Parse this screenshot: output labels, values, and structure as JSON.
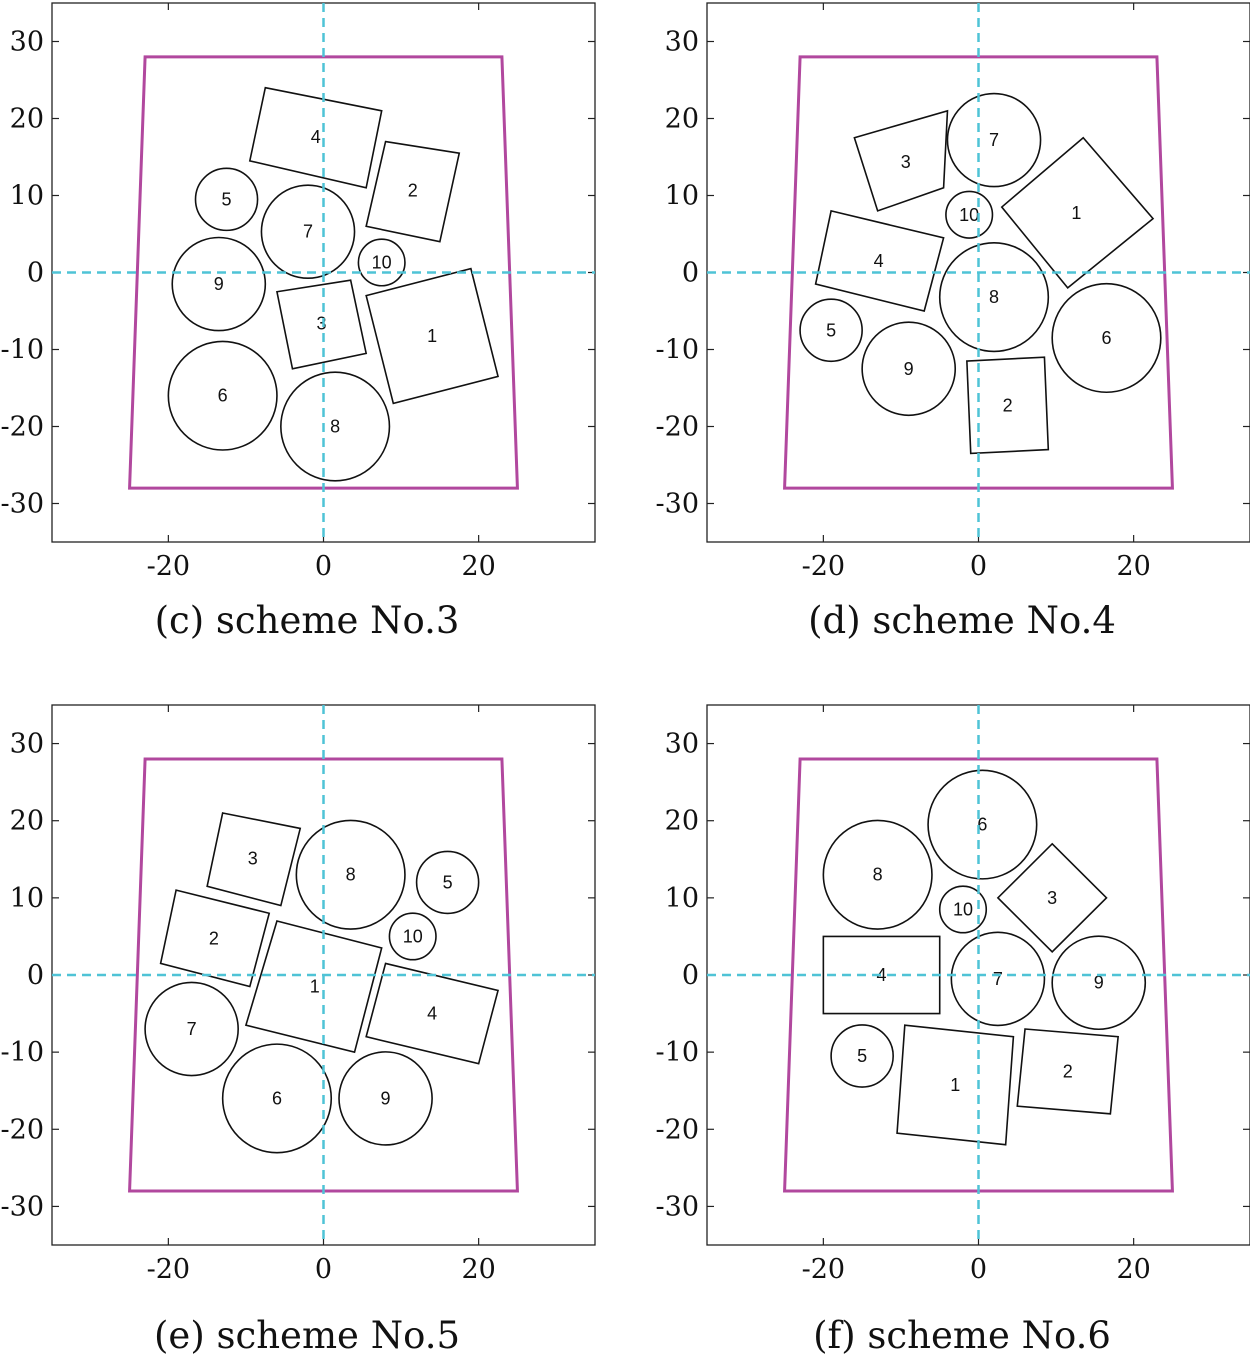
{
  "chart_data": [
    {
      "type": "scatter",
      "caption": "(c) scheme No.3",
      "xlim": [
        -35,
        35
      ],
      "ylim": [
        -35,
        35
      ],
      "xticks": [
        -20,
        0,
        20
      ],
      "yticks": [
        30,
        20,
        10,
        0,
        -10,
        -20,
        -30
      ],
      "container": [
        [
          -23,
          28
        ],
        [
          23,
          28
        ],
        [
          25,
          -28
        ],
        [
          -25,
          -28
        ]
      ],
      "parts": [
        {
          "label": "1",
          "shape": "rect",
          "corners": [
            [
              5.5,
              -3
            ],
            [
              19,
              0.5
            ],
            [
              22.5,
              -13.5
            ],
            [
              9,
              -17
            ]
          ]
        },
        {
          "label": "2",
          "shape": "rect",
          "corners": [
            [
              8,
              17
            ],
            [
              17.5,
              15.5
            ],
            [
              15,
              4
            ],
            [
              5.5,
              6
            ]
          ]
        },
        {
          "label": "3",
          "shape": "rect",
          "corners": [
            [
              -6,
              -2.5
            ],
            [
              3.5,
              -1
            ],
            [
              5.5,
              -10.5
            ],
            [
              -4,
              -12.5
            ]
          ]
        },
        {
          "label": "4",
          "shape": "rect",
          "corners": [
            [
              -7.5,
              24
            ],
            [
              7.5,
              21
            ],
            [
              5.5,
              11
            ],
            [
              -9.5,
              14.5
            ]
          ]
        },
        {
          "label": "5",
          "shape": "circle",
          "center": [
            -12.5,
            9.5
          ],
          "r": 4
        },
        {
          "label": "6",
          "shape": "circle",
          "center": [
            -13,
            -16
          ],
          "r": 7
        },
        {
          "label": "7",
          "shape": "circle",
          "center": [
            -2,
            5.3
          ],
          "r": 6
        },
        {
          "label": "8",
          "shape": "circle",
          "center": [
            1.5,
            -20
          ],
          "r": 7
        },
        {
          "label": "9",
          "shape": "circle",
          "center": [
            -13.5,
            -1.5
          ],
          "r": 6
        },
        {
          "label": "10",
          "shape": "circle",
          "center": [
            7.5,
            1.3
          ],
          "r": 3
        }
      ]
    },
    {
      "type": "scatter",
      "caption": "(d) scheme No.4",
      "xlim": [
        -35,
        35
      ],
      "ylim": [
        -35,
        35
      ],
      "xticks": [
        -20,
        0,
        20
      ],
      "yticks": [
        30,
        20,
        10,
        0,
        -10,
        -20,
        -30
      ],
      "container": [
        [
          -23,
          28
        ],
        [
          23,
          28
        ],
        [
          25,
          -28
        ],
        [
          -25,
          -28
        ]
      ],
      "parts": [
        {
          "label": "1",
          "shape": "rect",
          "corners": [
            [
              3,
              8.5
            ],
            [
              13.5,
              17.5
            ],
            [
              22.5,
              7
            ],
            [
              11.5,
              -2
            ]
          ]
        },
        {
          "label": "2",
          "shape": "rect",
          "corners": [
            [
              -1.5,
              -11.5
            ],
            [
              8.5,
              -11
            ],
            [
              9,
              -23
            ],
            [
              -1,
              -23.5
            ]
          ]
        },
        {
          "label": "3",
          "shape": "rect",
          "corners": [
            [
              -16,
              17.5
            ],
            [
              -4,
              21
            ],
            [
              -4.5,
              11
            ],
            [
              -13,
              8
            ]
          ]
        },
        {
          "label": "4",
          "shape": "rect",
          "corners": [
            [
              -19,
              8
            ],
            [
              -4.5,
              4.5
            ],
            [
              -7,
              -5
            ],
            [
              -21,
              -1.5
            ]
          ]
        },
        {
          "label": "5",
          "shape": "circle",
          "center": [
            -19,
            -7.5
          ],
          "r": 4
        },
        {
          "label": "6",
          "shape": "circle",
          "center": [
            16.5,
            -8.5
          ],
          "r": 7
        },
        {
          "label": "7",
          "shape": "circle",
          "center": [
            2,
            17.2
          ],
          "r": 6
        },
        {
          "label": "8",
          "shape": "circle",
          "center": [
            2,
            -3.2
          ],
          "r": 7
        },
        {
          "label": "9",
          "shape": "circle",
          "center": [
            -9,
            -12.5
          ],
          "r": 6
        },
        {
          "label": "10",
          "shape": "circle",
          "center": [
            -1.2,
            7.5
          ],
          "r": 3
        }
      ]
    },
    {
      "type": "scatter",
      "caption": "(e) scheme No.5",
      "xlim": [
        -35,
        35
      ],
      "ylim": [
        -35,
        35
      ],
      "xticks": [
        -20,
        0,
        20
      ],
      "yticks": [
        30,
        20,
        10,
        0,
        -10,
        -20,
        -30
      ],
      "container": [
        [
          -23,
          28
        ],
        [
          23,
          28
        ],
        [
          25,
          -28
        ],
        [
          -25,
          -28
        ]
      ],
      "parts": [
        {
          "label": "1",
          "shape": "rect",
          "corners": [
            [
              -6,
              7
            ],
            [
              7.5,
              3.5
            ],
            [
              4,
              -10
            ],
            [
              -10,
              -6.5
            ]
          ]
        },
        {
          "label": "2",
          "shape": "rect",
          "corners": [
            [
              -19,
              11
            ],
            [
              -7,
              8
            ],
            [
              -9.5,
              -1.5
            ],
            [
              -21,
              1.5
            ]
          ]
        },
        {
          "label": "3",
          "shape": "rect",
          "corners": [
            [
              -13,
              21
            ],
            [
              -3,
              19
            ],
            [
              -5.5,
              9
            ],
            [
              -15,
              11.5
            ]
          ]
        },
        {
          "label": "4",
          "shape": "rect",
          "corners": [
            [
              8,
              1.5
            ],
            [
              22.5,
              -2
            ],
            [
              20,
              -11.5
            ],
            [
              5.5,
              -8
            ]
          ]
        },
        {
          "label": "5",
          "shape": "circle",
          "center": [
            16,
            12
          ],
          "r": 4
        },
        {
          "label": "6",
          "shape": "circle",
          "center": [
            -6,
            -16
          ],
          "r": 7
        },
        {
          "label": "7",
          "shape": "circle",
          "center": [
            -17,
            -7
          ],
          "r": 6
        },
        {
          "label": "8",
          "shape": "circle",
          "center": [
            3.5,
            13
          ],
          "r": 7
        },
        {
          "label": "9",
          "shape": "circle",
          "center": [
            8,
            -16
          ],
          "r": 6
        },
        {
          "label": "10",
          "shape": "circle",
          "center": [
            11.5,
            5
          ],
          "r": 3
        }
      ]
    },
    {
      "type": "scatter",
      "caption": "(f) scheme No.6",
      "xlim": [
        -35,
        35
      ],
      "ylim": [
        -35,
        35
      ],
      "xticks": [
        -20,
        0,
        20
      ],
      "yticks": [
        30,
        20,
        10,
        0,
        -10,
        -20,
        -30
      ],
      "container": [
        [
          -23,
          28
        ],
        [
          23,
          28
        ],
        [
          25,
          -28
        ],
        [
          -25,
          -28
        ]
      ],
      "parts": [
        {
          "label": "1",
          "shape": "rect",
          "corners": [
            [
              -9.5,
              -6.5
            ],
            [
              4.5,
              -8
            ],
            [
              3.5,
              -22
            ],
            [
              -10.5,
              -20.5
            ]
          ]
        },
        {
          "label": "2",
          "shape": "rect",
          "corners": [
            [
              6,
              -7
            ],
            [
              18,
              -8
            ],
            [
              17,
              -18
            ],
            [
              5,
              -17
            ]
          ]
        },
        {
          "label": "3",
          "shape": "rect",
          "corners": [
            [
              9.5,
              17
            ],
            [
              16.5,
              10
            ],
            [
              9.5,
              3
            ],
            [
              2.5,
              10
            ]
          ]
        },
        {
          "label": "4",
          "shape": "rect",
          "corners": [
            [
              -20,
              5
            ],
            [
              -5,
              5
            ],
            [
              -5,
              -5
            ],
            [
              -20,
              -5
            ]
          ]
        },
        {
          "label": "5",
          "shape": "circle",
          "center": [
            -15,
            -10.5
          ],
          "r": 4
        },
        {
          "label": "6",
          "shape": "circle",
          "center": [
            0.5,
            19.5
          ],
          "r": 7
        },
        {
          "label": "7",
          "shape": "circle",
          "center": [
            2.5,
            -0.5
          ],
          "r": 6
        },
        {
          "label": "8",
          "shape": "circle",
          "center": [
            -13,
            13
          ],
          "r": 7
        },
        {
          "label": "9",
          "shape": "circle",
          "center": [
            15.5,
            -1
          ],
          "r": 6
        },
        {
          "label": "10",
          "shape": "circle",
          "center": [
            -2,
            8.5
          ],
          "r": 3
        }
      ]
    }
  ]
}
